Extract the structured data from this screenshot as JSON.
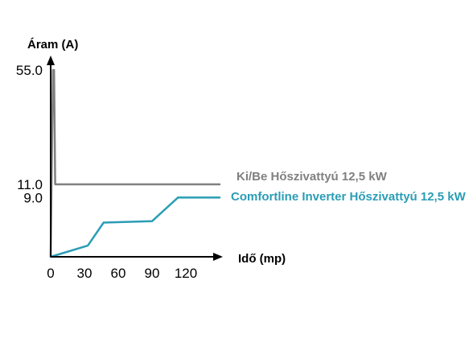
{
  "chart_data": {
    "type": "line",
    "title": "",
    "ylabel": "Áram (A)",
    "xlabel": "Idő (mp)",
    "xlim": [
      0,
      150
    ],
    "ylim": [
      0,
      55
    ],
    "y_scale": "broken (compressed above 11.0)",
    "x_ticks": [
      {
        "value": 0,
        "label": "0"
      },
      {
        "value": 30,
        "label": "30"
      },
      {
        "value": 60,
        "label": "60"
      },
      {
        "value": 90,
        "label": "90"
      },
      {
        "value": 120,
        "label": "120"
      }
    ],
    "y_ticks": [
      {
        "value": 9.0,
        "label": "9.0"
      },
      {
        "value": 11.0,
        "label": "11.0"
      },
      {
        "value": 55.0,
        "label": "55.0"
      }
    ],
    "grid": false,
    "legend": "labels at right end of each line",
    "series": [
      {
        "name": "Ki/Be Hőszivattyú 12,5 kW",
        "color": "#808080",
        "points": [
          [
            0,
            0
          ],
          [
            2,
            55
          ],
          [
            3,
            55
          ],
          [
            4,
            11
          ],
          [
            150,
            11
          ]
        ]
      },
      {
        "name": "Comfortline Inverter Hőszivattyú 12,5 kW",
        "color": "#2a9db5",
        "points": [
          [
            0,
            0
          ],
          [
            33,
            1.7
          ],
          [
            47,
            5.2
          ],
          [
            90,
            5.4
          ],
          [
            113,
            9.0
          ],
          [
            150,
            9.0
          ]
        ]
      }
    ]
  }
}
